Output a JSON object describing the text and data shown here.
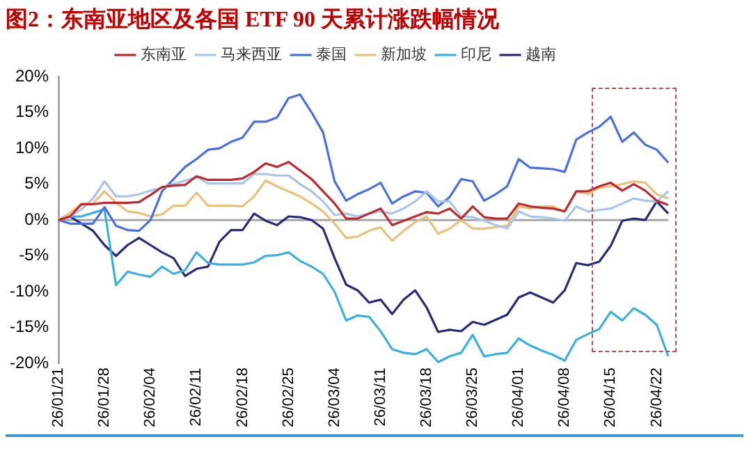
{
  "chart_data": {
    "type": "line",
    "title": "图2：东南亚地区及各国 ETF 90 天累计涨跌幅情况",
    "categories": [
      "26/01/21",
      null,
      null,
      null,
      "26/01/28",
      null,
      null,
      null,
      "26/02/04",
      null,
      null,
      null,
      "26/02/11",
      null,
      null,
      null,
      "26/02/18",
      null,
      null,
      null,
      "26/02/25",
      null,
      null,
      null,
      "26/03/04",
      null,
      null,
      null,
      "26/03/11",
      null,
      null,
      null,
      "26/03/18",
      null,
      null,
      null,
      "26/03/25",
      null,
      null,
      null,
      "26/04/01",
      null,
      null,
      null,
      "26/04/08",
      null,
      null,
      null,
      "26/04/15",
      null,
      null,
      null,
      "26/04/22",
      null
    ],
    "series": [
      {
        "name": "东南亚",
        "color": "#c0282e",
        "values": [
          0,
          0.5,
          2.2,
          2.2,
          2.4,
          2.4,
          2.4,
          2.5,
          3.5,
          4.6,
          4.8,
          4.9,
          6.1,
          5.6,
          5.6,
          5.6,
          5.8,
          6.7,
          7.9,
          7.4,
          8.1,
          6.9,
          5.7,
          4,
          2.3,
          0.2,
          0.2,
          0.9,
          1.6,
          -0.7,
          -0.1,
          0.5,
          1.1,
          0.9,
          1.6,
          0.2,
          1.9,
          0.4,
          0.2,
          0.2,
          2.3,
          1.9,
          1.7,
          1.6,
          1.2,
          4,
          4,
          4.7,
          5.2,
          4.1,
          5,
          4.1,
          2.7,
          2.1
        ]
      },
      {
        "name": "马来西亚",
        "color": "#a9c6e8",
        "values": [
          0,
          0.5,
          1.5,
          3,
          5.4,
          3.3,
          3.3,
          3.6,
          4.1,
          4.5,
          5,
          5.5,
          6,
          5.1,
          5.1,
          5.1,
          5.1,
          6.4,
          6.4,
          6.2,
          6.2,
          5,
          4,
          2.6,
          0.7,
          0.9,
          0.5,
          0.9,
          1.2,
          0.9,
          1.6,
          2.6,
          4,
          2.6,
          2.6,
          0.5,
          0.4,
          -0.1,
          -0.7,
          -1.2,
          1.2,
          0.5,
          0.4,
          0.2,
          -0.1,
          1.9,
          1.2,
          1.4,
          1.6,
          2.3,
          3,
          2.7,
          2.6,
          4
        ]
      },
      {
        "name": "泰国",
        "color": "#4a6fe3",
        "values": [
          0,
          -0.5,
          -0.5,
          -0.5,
          1.8,
          -0.8,
          -1.4,
          -1.5,
          0,
          4,
          5.7,
          7.4,
          8.5,
          9.8,
          10,
          10.9,
          11.5,
          13.7,
          13.7,
          14.3,
          17,
          17.5,
          15,
          12.2,
          5.4,
          2.7,
          3.6,
          4.3,
          5.2,
          2.3,
          3.3,
          4,
          3.8,
          1.9,
          3.2,
          5.7,
          5.4,
          2.7,
          3.6,
          4.7,
          8.5,
          7.3,
          7.2,
          7.1,
          6.7,
          11.2,
          12.2,
          13,
          14.4,
          10.9,
          12.2,
          10.5,
          9.8,
          8
        ]
      },
      {
        "name": "新加坡",
        "color": "#e8c27a",
        "values": [
          0,
          1,
          2.3,
          2.3,
          4,
          2.4,
          1.2,
          1,
          0.5,
          0.8,
          2,
          2,
          3.8,
          2,
          2,
          2,
          1.9,
          3.3,
          5.5,
          4.7,
          4,
          3.3,
          2.3,
          1.2,
          -0.5,
          -2.5,
          -2.3,
          -1.5,
          -1,
          -2.9,
          -1.5,
          -0.3,
          0.5,
          -1.9,
          -1.2,
          0,
          -1.2,
          -1.2,
          -1,
          -0.8,
          1.9,
          1.6,
          1.9,
          1.9,
          1.2,
          4,
          3.6,
          4.5,
          4.7,
          5,
          5.4,
          5.2,
          3.6,
          3
        ]
      },
      {
        "name": "印尼",
        "color": "#3bb0e0",
        "values": [
          0,
          0.5,
          0.5,
          1,
          1.5,
          -9.1,
          -7.2,
          -7.6,
          -7.9,
          -6.5,
          -7.5,
          -7,
          -4.5,
          -6,
          -6.2,
          -6.2,
          -6.2,
          -5.9,
          -5,
          -4.9,
          -4.5,
          -5.7,
          -6.5,
          -7.5,
          -10,
          -14,
          -13.3,
          -13.5,
          -15.5,
          -18,
          -18.5,
          -18.7,
          -18,
          -19.8,
          -19,
          -18.5,
          -16,
          -19,
          -18.7,
          -18.5,
          -16.5,
          -17.5,
          -18.2,
          -18.8,
          -19.6,
          -16.7,
          -15.9,
          -15.2,
          -12.8,
          -14,
          -12.3,
          -13.2,
          -14.6,
          -19
        ]
      },
      {
        "name": "越南",
        "color": "#2a2a7a",
        "values": [
          0,
          0.5,
          -0.5,
          -1.5,
          -3.5,
          -5,
          -3.5,
          -2.5,
          -3.5,
          -4.5,
          -5.3,
          -7.8,
          -6.8,
          -6.5,
          -3,
          -1.4,
          -1.4,
          0.9,
          -0.1,
          -0.7,
          0.5,
          0.4,
          0,
          -1.2,
          -5.3,
          -9,
          -9.8,
          -11.5,
          -11.1,
          -13.1,
          -11.1,
          -9.8,
          -12.2,
          -15.6,
          -15.3,
          -15.5,
          -14.2,
          -14.6,
          -13.9,
          -13.2,
          -10.8,
          -10.1,
          -10.8,
          -11.5,
          -9.8,
          -6,
          -6.3,
          -5.8,
          -3.6,
          -0.1,
          0.2,
          0,
          2.6,
          0.9
        ]
      }
    ],
    "ylim": [
      -20,
      20
    ],
    "yticks": [
      {
        "value": -20,
        "label": "-20%"
      },
      {
        "value": -15,
        "label": "-15%"
      },
      {
        "value": -10,
        "label": "-10%"
      },
      {
        "value": -5,
        "label": "-5%"
      },
      {
        "value": 0,
        "label": "0%"
      },
      {
        "value": 5,
        "label": "5%"
      },
      {
        "value": 10,
        "label": "10%"
      },
      {
        "value": 15,
        "label": "15%"
      },
      {
        "value": 20,
        "label": "20%"
      }
    ],
    "ref_lines": [
      {
        "axis": "y",
        "value": 0,
        "color": "#a6a6a6"
      }
    ],
    "legend": "top",
    "grid": false,
    "marker": "none",
    "line_style": "solid"
  }
}
